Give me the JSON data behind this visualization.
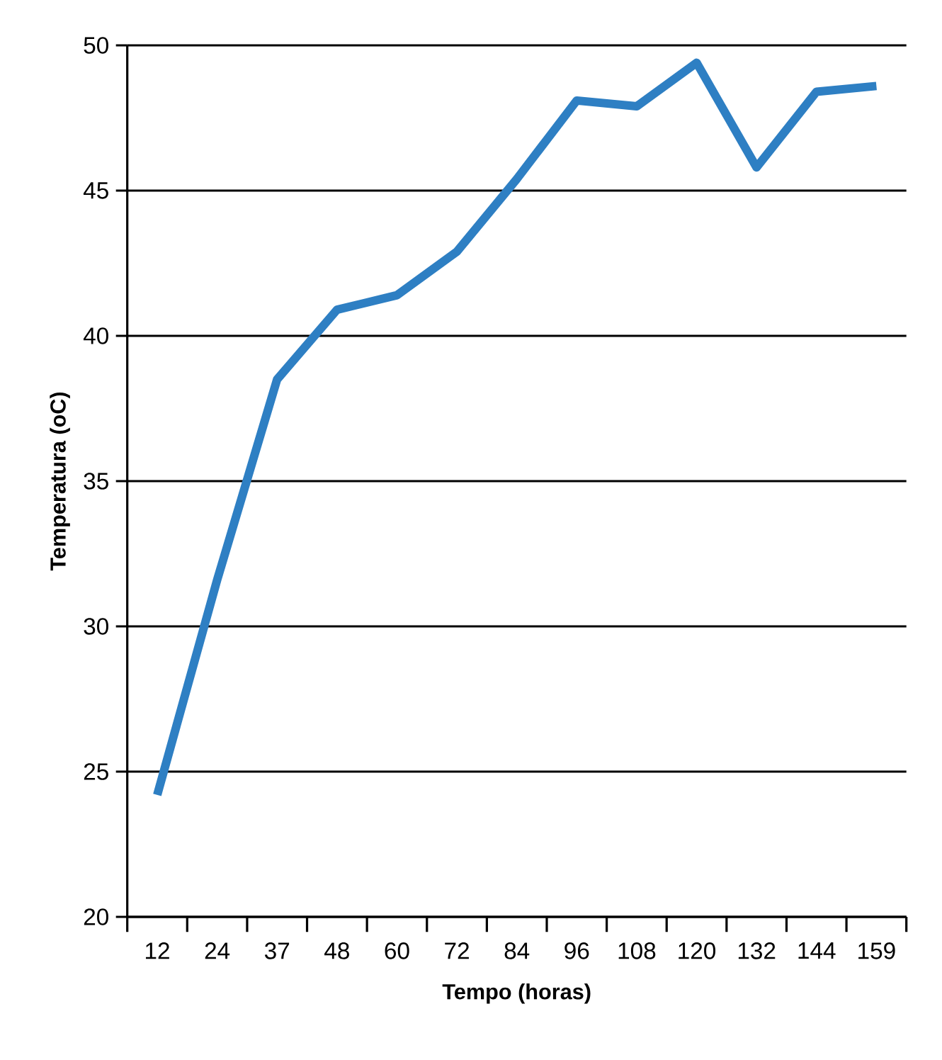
{
  "chart_data": {
    "type": "line",
    "xlabel": "Tempo (horas)",
    "ylabel": "Temperatura (oC)",
    "categories": [
      "12",
      "24",
      "37",
      "48",
      "60",
      "72",
      "84",
      "96",
      "108",
      "120",
      "132",
      "144",
      "159"
    ],
    "series": [
      {
        "color": "#2e7fc3",
        "values": [
          24.2,
          31.6,
          38.5,
          40.9,
          41.4,
          42.9,
          45.4,
          48.1,
          47.9,
          49.4,
          45.8,
          48.4,
          48.6
        ]
      }
    ],
    "ylim": [
      20,
      50
    ],
    "yticks": [
      20,
      25,
      30,
      35,
      40,
      45,
      50
    ],
    "grid": "y",
    "marker": "none",
    "line_style": "solid"
  }
}
